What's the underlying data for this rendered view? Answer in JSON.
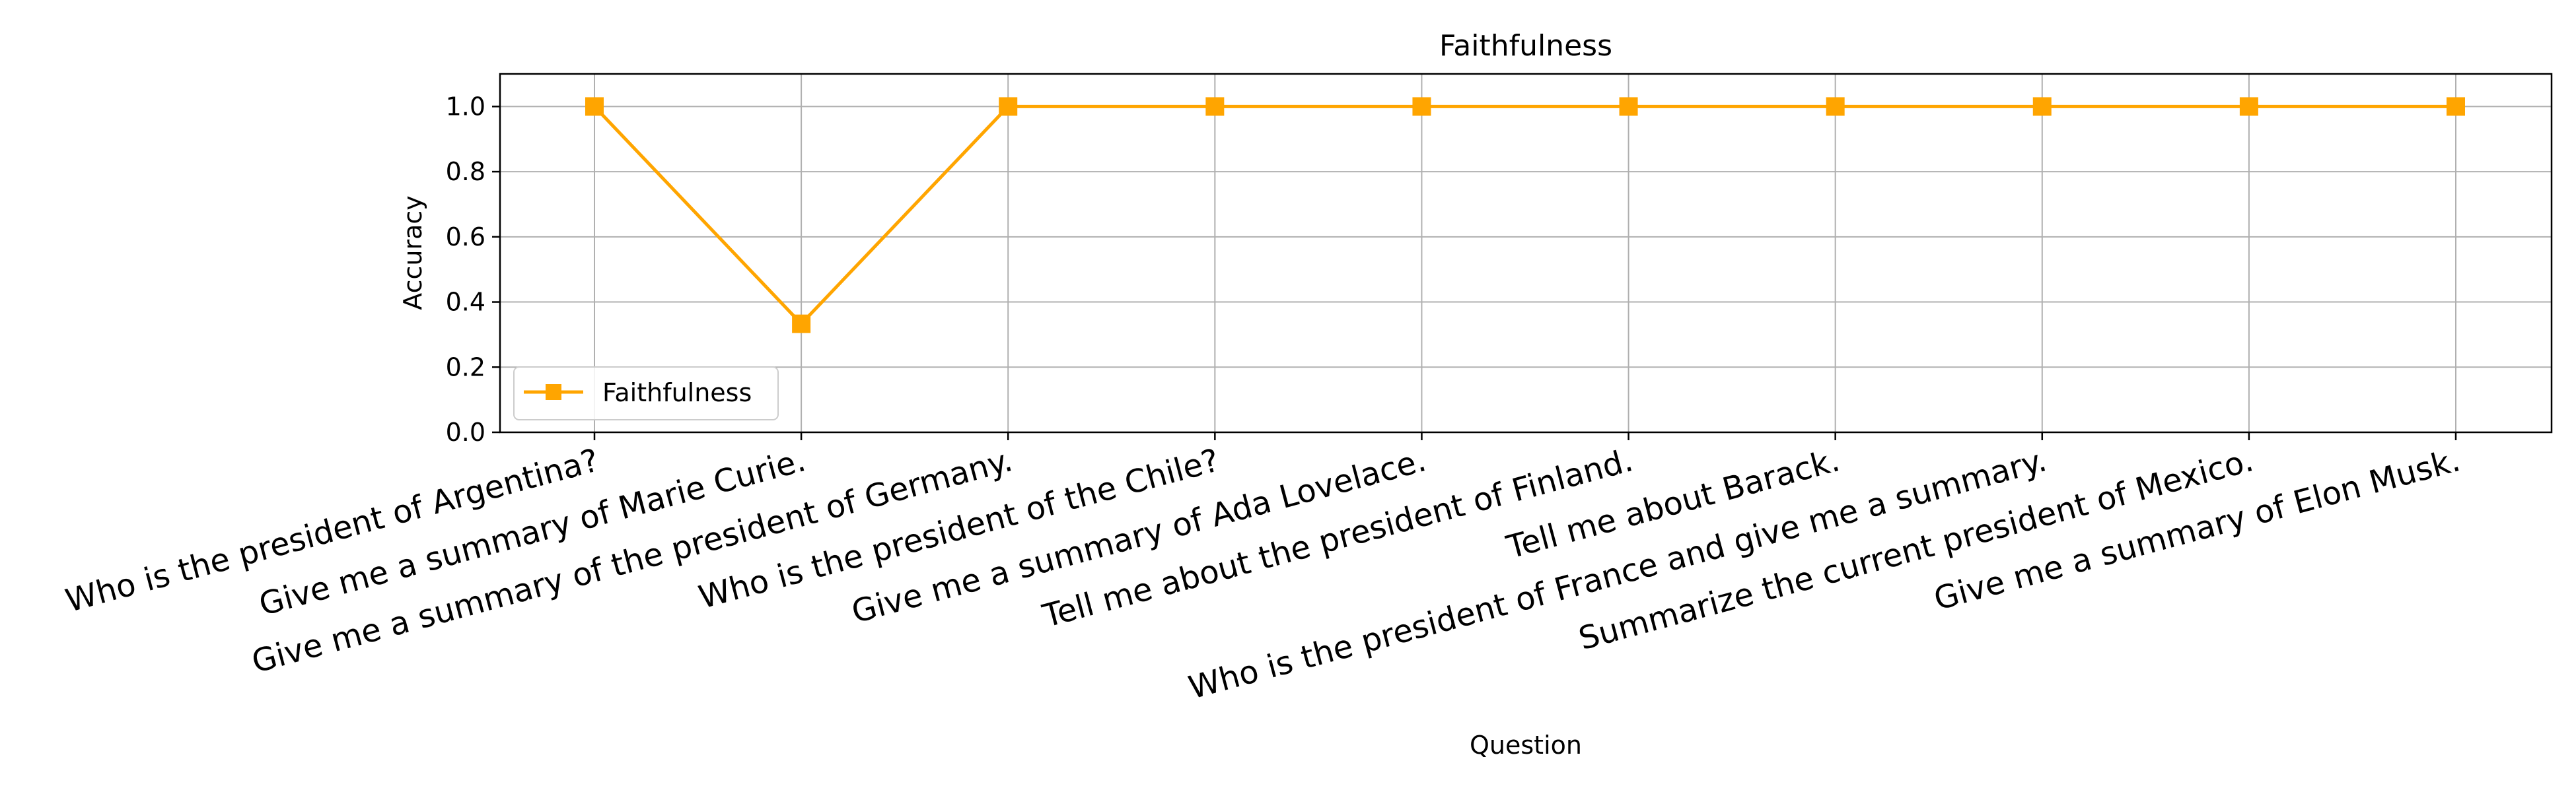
{
  "chart_data": {
    "type": "line",
    "title": "Faithfulness",
    "xlabel": "Question",
    "ylabel": "Accuracy",
    "ylim": [
      0,
      1.1
    ],
    "yticks": [
      "0.0",
      "0.2",
      "0.4",
      "0.6",
      "0.8",
      "1.0"
    ],
    "grid": true,
    "legend_position": "lower-left",
    "categories": [
      "Who is the president of Argentina?",
      "Give me a summary of Marie Curie.",
      "Give me a summary of the president of Germany.",
      "Who is the president of the Chile?",
      "Give me a summary of Ada Lovelace.",
      "Tell me about the president of Finland.",
      "Tell me about Barack.",
      "Who is the president of France and give me a summary.",
      "Summarize the current president of Mexico.",
      "Give me a summary of Elon Musk."
    ],
    "series": [
      {
        "name": "Faithfulness",
        "color": "#FFA500",
        "marker": "square",
        "values": [
          1.0,
          0.333,
          1.0,
          1.0,
          1.0,
          1.0,
          1.0,
          1.0,
          1.0,
          1.0
        ]
      }
    ]
  }
}
